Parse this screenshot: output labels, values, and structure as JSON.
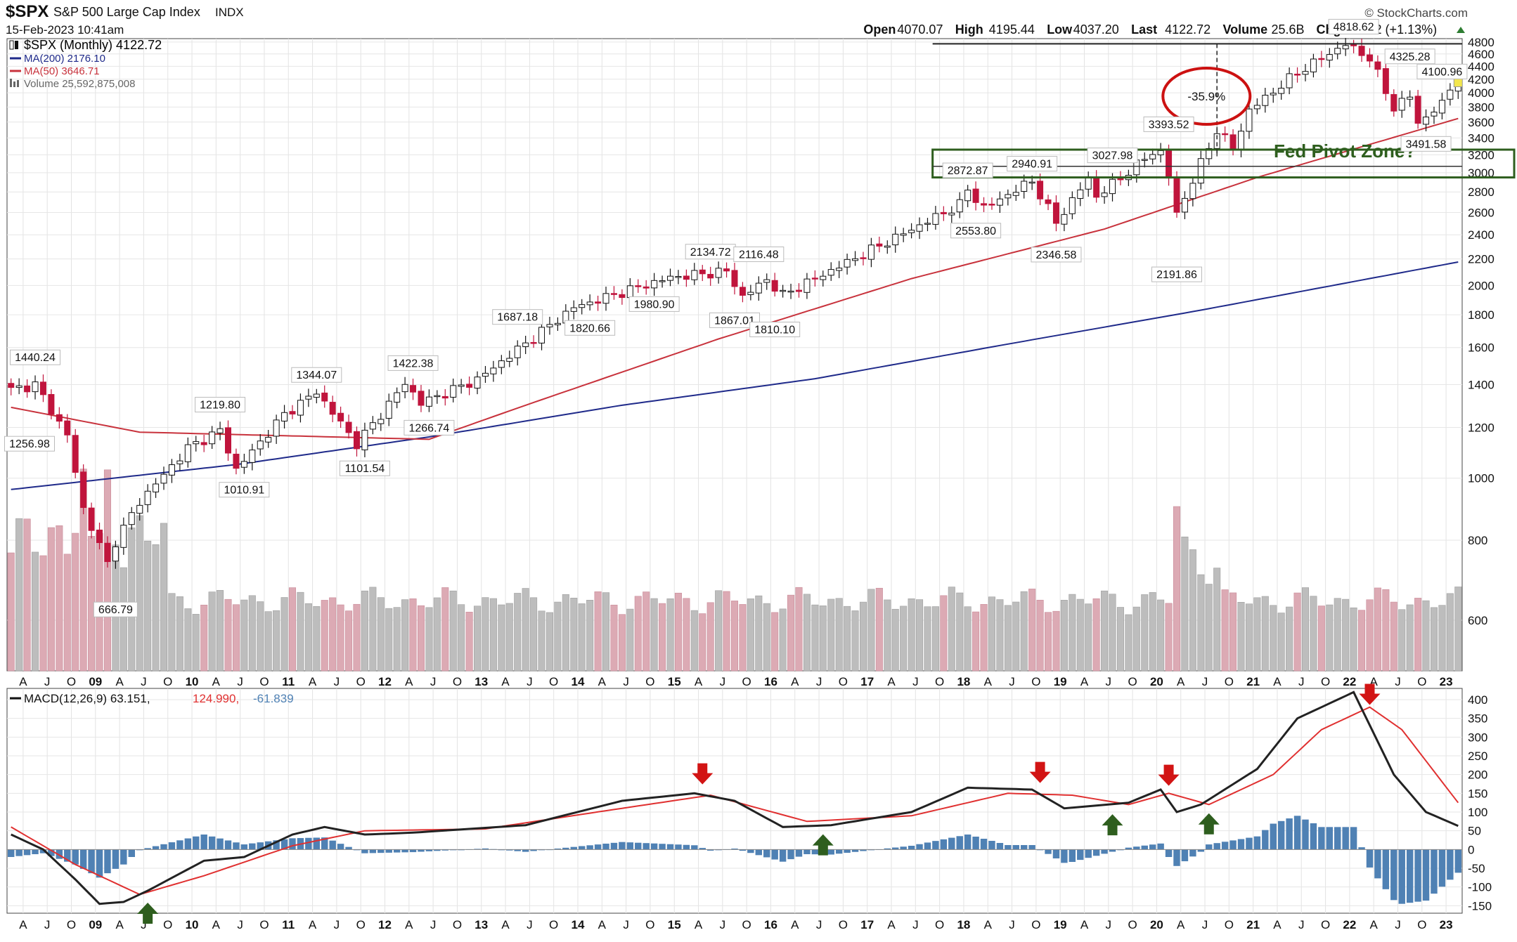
{
  "header": {
    "symbol": "$SPX",
    "name": "S&P 500 Large Cap Index",
    "exchange": "INDX",
    "timestamp": "15-Feb-2023 10:41am",
    "copyright": "© StockCharts.com",
    "quote": [
      {
        "label": "Open",
        "value": "4070.07"
      },
      {
        "label": "High",
        "value": "4195.44"
      },
      {
        "label": "Low",
        "value": "4037.20"
      },
      {
        "label": "Last",
        "value": "4122.72"
      },
      {
        "label": "Volume",
        "value": "25.6B"
      },
      {
        "label": "Chg",
        "value": "+46.12 (+1.13%)"
      }
    ]
  },
  "legend": [
    {
      "text": "$SPX (Monthly) 4122.72",
      "color": "#000000",
      "symbol": "candle-icon"
    },
    {
      "text": "MA(200) 2176.10",
      "color": "#1f2a8a",
      "symbol": "line-icon"
    },
    {
      "text": "MA(50) 3646.71",
      "color": "#c8323c",
      "symbol": "line-icon"
    },
    {
      "text": "Volume 25,592,875,008",
      "color": "#666666",
      "symbol": "bar-icon"
    }
  ],
  "colors": {
    "up_candle": "#ffffff",
    "down_candle": "#c0143c",
    "ma200": "#1f2a8a",
    "ma50": "#c8323c",
    "volume_up": "#bdbdbd",
    "volume_down": "#dcaab4",
    "macd_line": "#222222",
    "signal_line": "#e03030",
    "histogram": "#4f81b4",
    "fed_zone": "#2e5e1e",
    "circle": "#cc1111",
    "arrow_down": "#d21414",
    "arrow_up": "#2e5e1e"
  },
  "chart_data": [
    {
      "type": "candlestick",
      "title": "$SPX (Monthly)",
      "frequency": "monthly",
      "x_range": [
        "2008-02",
        "2023-02"
      ],
      "x_tick_labels": [
        "A",
        "J",
        "O",
        "09",
        "A",
        "J",
        "O",
        "10",
        "A",
        "J",
        "O",
        "11",
        "A",
        "J",
        "O",
        "12",
        "A",
        "J",
        "O",
        "13",
        "A",
        "J",
        "O",
        "14",
        "A",
        "J",
        "O",
        "15",
        "A",
        "J",
        "O",
        "16",
        "A",
        "J",
        "O",
        "17",
        "A",
        "J",
        "O",
        "18",
        "A",
        "J",
        "O",
        "19",
        "A",
        "J",
        "O",
        "20",
        "A",
        "J",
        "O",
        "21",
        "A",
        "J",
        "O",
        "22",
        "A",
        "J",
        "O",
        "23"
      ],
      "y_ticks": [
        600,
        800,
        1000,
        1200,
        1400,
        1600,
        1800,
        2000,
        2200,
        2400,
        2600,
        2800,
        3000,
        3200,
        3400,
        3600,
        3800,
        4000,
        4200,
        4400,
        4600,
        4800
      ],
      "ylim": [
        500,
        4860
      ],
      "log_scale": true,
      "grid": true,
      "anchor_prices": [
        {
          "date": "2008-05",
          "close": 1400
        },
        {
          "date": "2008-09",
          "close": 1166
        },
        {
          "date": "2008-11",
          "close": 896
        },
        {
          "date": "2009-02",
          "close": 735
        },
        {
          "date": "2009-03",
          "close": 797
        },
        {
          "date": "2009-06",
          "close": 919
        },
        {
          "date": "2009-12",
          "close": 1115
        },
        {
          "date": "2010-04",
          "close": 1187
        },
        {
          "date": "2010-06",
          "close": 1031
        },
        {
          "date": "2010-12",
          "close": 1258
        },
        {
          "date": "2011-04",
          "close": 1364
        },
        {
          "date": "2011-09",
          "close": 1131
        },
        {
          "date": "2011-12",
          "close": 1258
        },
        {
          "date": "2012-03",
          "close": 1408
        },
        {
          "date": "2012-05",
          "close": 1310
        },
        {
          "date": "2012-12",
          "close": 1426
        },
        {
          "date": "2013-12",
          "close": 1848
        },
        {
          "date": "2014-12",
          "close": 2059
        },
        {
          "date": "2015-07",
          "close": 2104
        },
        {
          "date": "2015-09",
          "close": 1920
        },
        {
          "date": "2015-12",
          "close": 2044
        },
        {
          "date": "2016-02",
          "close": 1932
        },
        {
          "date": "2016-12",
          "close": 2239
        },
        {
          "date": "2017-12",
          "close": 2674
        },
        {
          "date": "2018-01",
          "close": 2824
        },
        {
          "date": "2018-03",
          "close": 2641
        },
        {
          "date": "2018-09",
          "close": 2914
        },
        {
          "date": "2018-12",
          "close": 2507
        },
        {
          "date": "2019-04",
          "close": 2946
        },
        {
          "date": "2019-05",
          "close": 2752
        },
        {
          "date": "2019-12",
          "close": 3231
        },
        {
          "date": "2020-01",
          "close": 3226
        },
        {
          "date": "2020-02",
          "close": 2954
        },
        {
          "date": "2020-03",
          "close": 2585
        },
        {
          "date": "2020-06",
          "close": 3100
        },
        {
          "date": "2020-08",
          "close": 3500
        },
        {
          "date": "2020-10",
          "close": 3270
        },
        {
          "date": "2020-12",
          "close": 3756
        },
        {
          "date": "2021-06",
          "close": 4298
        },
        {
          "date": "2021-12",
          "close": 4766
        },
        {
          "date": "2022-03",
          "close": 4530
        },
        {
          "date": "2022-06",
          "close": 3785
        },
        {
          "date": "2022-08",
          "close": 3955
        },
        {
          "date": "2022-09",
          "close": 3585
        },
        {
          "date": "2022-12",
          "close": 3839
        },
        {
          "date": "2023-01",
          "close": 4076
        },
        {
          "date": "2023-02",
          "close": 4123
        }
      ],
      "ma50_anchors": [
        {
          "date": "2008-02",
          "value": 1290
        },
        {
          "date": "2009-06",
          "value": 1180
        },
        {
          "date": "2012-06",
          "value": 1150
        },
        {
          "date": "2013-06",
          "value": 1300
        },
        {
          "date": "2015-06",
          "value": 1650
        },
        {
          "date": "2017-06",
          "value": 2050
        },
        {
          "date": "2019-06",
          "value": 2450
        },
        {
          "date": "2021-01",
          "value": 2950
        },
        {
          "date": "2023-02",
          "value": 3646.71
        }
      ],
      "ma200_anchors": [
        {
          "date": "2008-02",
          "value": 960
        },
        {
          "date": "2010-06",
          "value": 1050
        },
        {
          "date": "2012-06",
          "value": 1160
        },
        {
          "date": "2014-06",
          "value": 1300
        },
        {
          "date": "2016-06",
          "value": 1430
        },
        {
          "date": "2018-06",
          "value": 1620
        },
        {
          "date": "2020-06",
          "value": 1830
        },
        {
          "date": "2023-02",
          "value": 2176.1
        }
      ],
      "annotations": [
        {
          "text": "1440.24",
          "date": "2008-05",
          "price": 1470,
          "pos": "above"
        },
        {
          "text": "1256.98",
          "date": "2008-02",
          "price": 1180,
          "pos": "below"
        },
        {
          "text": "666.79",
          "date": "2009-03",
          "price": 650,
          "pos": "below"
        },
        {
          "text": "1219.80",
          "date": "2010-04",
          "price": 1240,
          "pos": "above"
        },
        {
          "text": "1010.91",
          "date": "2010-07",
          "price": 1000,
          "pos": "below"
        },
        {
          "text": "1344.07",
          "date": "2011-04",
          "price": 1380,
          "pos": "above"
        },
        {
          "text": "1101.54",
          "date": "2011-10",
          "price": 1080,
          "pos": "below"
        },
        {
          "text": "1422.38",
          "date": "2012-04",
          "price": 1440,
          "pos": "above"
        },
        {
          "text": "1266.74",
          "date": "2012-06",
          "price": 1250,
          "pos": "below"
        },
        {
          "text": "1687.18",
          "date": "2013-05",
          "price": 1700,
          "pos": "above"
        },
        {
          "text": "1820.66",
          "date": "2014-02",
          "price": 1790,
          "pos": "below"
        },
        {
          "text": "1980.90",
          "date": "2014-10",
          "price": 1950,
          "pos": "below"
        },
        {
          "text": "2134.72",
          "date": "2015-05",
          "price": 2150,
          "pos": "above"
        },
        {
          "text": "1867.01",
          "date": "2015-08",
          "price": 1840,
          "pos": "below"
        },
        {
          "text": "2116.48",
          "date": "2015-11",
          "price": 2130,
          "pos": "above"
        },
        {
          "text": "1810.10",
          "date": "2016-01",
          "price": 1780,
          "pos": "below"
        },
        {
          "text": "2872.87",
          "date": "2018-01",
          "price": 2880,
          "pos": "above"
        },
        {
          "text": "2553.80",
          "date": "2018-02",
          "price": 2540,
          "pos": "below"
        },
        {
          "text": "2940.91",
          "date": "2018-09",
          "price": 2950,
          "pos": "above"
        },
        {
          "text": "2346.58",
          "date": "2018-12",
          "price": 2330,
          "pos": "below"
        },
        {
          "text": "3027.98",
          "date": "2019-07",
          "price": 3040,
          "pos": "above"
        },
        {
          "text": "3393.52",
          "date": "2020-02",
          "price": 3400,
          "pos": "above"
        },
        {
          "text": "2191.86",
          "date": "2020-03",
          "price": 2170,
          "pos": "below"
        },
        {
          "text": "4818.62",
          "date": "2022-01",
          "price": 4830,
          "pos": "above"
        },
        {
          "text": "4325.28",
          "date": "2022-08",
          "price": 4340,
          "pos": "above"
        },
        {
          "text": "4100.96",
          "date": "2022-12",
          "price": 4110,
          "pos": "above"
        },
        {
          "text": "3491.58",
          "date": "2022-10",
          "price": 3470,
          "pos": "below"
        }
      ],
      "callouts": {
        "drawdown_text": "-35.9%",
        "fed_zone_label": "Fed Pivot Zone?",
        "fed_zone_range": [
          2950,
          3260
        ],
        "fed_zone_midline": 3070,
        "peak_line": 4770,
        "drawdown_x": "2020-08",
        "drawdown_from": 4770,
        "drawdown_to": 3200,
        "drawdown_circle_center": {
          "date": "2020-06",
          "price": 3950
        }
      }
    },
    {
      "type": "line",
      "title": "MACD(12,26,9)",
      "legend_text": "MACD(12,26,9) 63.151,",
      "signal_text": "124.990,",
      "histogram_text": "-61.839",
      "y_ticks": [
        -150,
        -100,
        -50,
        0,
        50,
        100,
        150,
        200,
        250,
        300,
        350,
        400
      ],
      "ylim": [
        -170,
        430
      ],
      "macd_anchors": [
        {
          "date": "2008-02",
          "value": 40
        },
        {
          "date": "2008-06",
          "value": 0
        },
        {
          "date": "2008-10",
          "value": -80
        },
        {
          "date": "2009-01",
          "value": -145
        },
        {
          "date": "2009-04",
          "value": -140
        },
        {
          "date": "2009-07",
          "value": -110
        },
        {
          "date": "2010-02",
          "value": -30
        },
        {
          "date": "2010-07",
          "value": -20
        },
        {
          "date": "2011-01",
          "value": 40
        },
        {
          "date": "2011-05",
          "value": 60
        },
        {
          "date": "2011-10",
          "value": 40
        },
        {
          "date": "2012-04",
          "value": 45
        },
        {
          "date": "2013-06",
          "value": 65
        },
        {
          "date": "2014-06",
          "value": 130
        },
        {
          "date": "2015-03",
          "value": 150
        },
        {
          "date": "2015-08",
          "value": 130
        },
        {
          "date": "2016-02",
          "value": 60
        },
        {
          "date": "2016-08",
          "value": 65
        },
        {
          "date": "2017-06",
          "value": 100
        },
        {
          "date": "2018-01",
          "value": 165
        },
        {
          "date": "2018-09",
          "value": 160
        },
        {
          "date": "2019-01",
          "value": 110
        },
        {
          "date": "2019-09",
          "value": 125
        },
        {
          "date": "2020-01",
          "value": 160
        },
        {
          "date": "2020-03",
          "value": 100
        },
        {
          "date": "2020-06",
          "value": 120
        },
        {
          "date": "2021-01",
          "value": 215
        },
        {
          "date": "2021-06",
          "value": 350
        },
        {
          "date": "2022-01",
          "value": 420
        },
        {
          "date": "2022-06",
          "value": 200
        },
        {
          "date": "2022-10",
          "value": 100
        },
        {
          "date": "2023-02",
          "value": 63
        }
      ],
      "signal_anchors": [
        {
          "date": "2008-02",
          "value": 60
        },
        {
          "date": "2008-10",
          "value": -40
        },
        {
          "date": "2009-06",
          "value": -120
        },
        {
          "date": "2010-02",
          "value": -70
        },
        {
          "date": "2011-01",
          "value": 10
        },
        {
          "date": "2011-10",
          "value": 50
        },
        {
          "date": "2013-01",
          "value": 55
        },
        {
          "date": "2014-06",
          "value": 110
        },
        {
          "date": "2015-05",
          "value": 145
        },
        {
          "date": "2016-05",
          "value": 75
        },
        {
          "date": "2017-06",
          "value": 90
        },
        {
          "date": "2018-06",
          "value": 150
        },
        {
          "date": "2019-02",
          "value": 145
        },
        {
          "date": "2019-09",
          "value": 120
        },
        {
          "date": "2020-02",
          "value": 150
        },
        {
          "date": "2020-07",
          "value": 120
        },
        {
          "date": "2021-03",
          "value": 200
        },
        {
          "date": "2021-09",
          "value": 320
        },
        {
          "date": "2022-03",
          "value": 380
        },
        {
          "date": "2022-07",
          "value": 320
        },
        {
          "date": "2023-02",
          "value": 125
        }
      ],
      "arrows": [
        {
          "type": "up",
          "date": "2009-07"
        },
        {
          "type": "down",
          "date": "2015-04"
        },
        {
          "type": "up",
          "date": "2016-07"
        },
        {
          "type": "down",
          "date": "2018-10"
        },
        {
          "type": "up",
          "date": "2019-07"
        },
        {
          "type": "down",
          "date": "2020-02"
        },
        {
          "type": "up",
          "date": "2020-07"
        },
        {
          "type": "down",
          "date": "2022-03"
        }
      ]
    }
  ]
}
